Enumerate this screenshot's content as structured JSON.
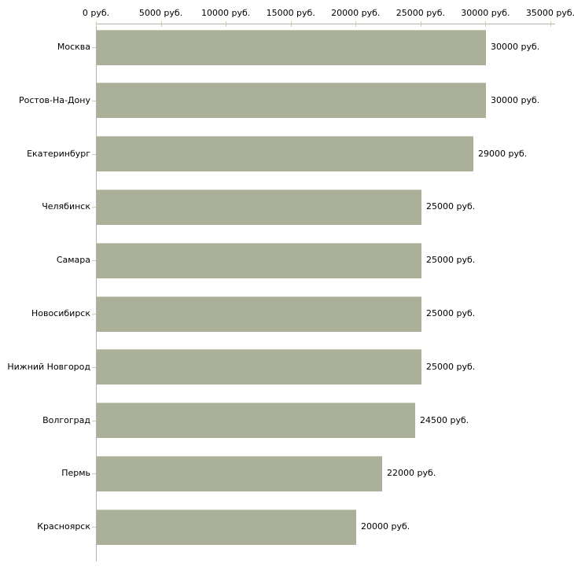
{
  "chart_data": {
    "type": "bar",
    "orientation": "horizontal",
    "title": "",
    "categories": [
      "Москва",
      "Ростов-На-Дону",
      "Екатеринбург",
      "Челябинск",
      "Самара",
      "Новосибирск",
      "Нижний Новгород",
      "Волгоград",
      "Пермь",
      "Красноярск"
    ],
    "values": [
      30000,
      30000,
      29000,
      25000,
      25000,
      25000,
      25000,
      24500,
      22000,
      20000
    ],
    "value_labels": [
      "30000 руб.",
      "30000 руб.",
      "29000 руб.",
      "25000 руб.",
      "25000 руб.",
      "25000 руб.",
      "25000 руб.",
      "24500 руб.",
      "22000 руб.",
      "20000 руб."
    ],
    "unit": "руб.",
    "x_axis": {
      "position": "top",
      "min": 0,
      "max": 35000,
      "ticks": [
        {
          "value": 0,
          "label": "0 руб."
        },
        {
          "value": 5000,
          "label": "5000 руб."
        },
        {
          "value": 10000,
          "label": "10000 руб."
        },
        {
          "value": 15000,
          "label": "15000 руб."
        },
        {
          "value": 20000,
          "label": "20000 руб."
        },
        {
          "value": 25000,
          "label": "25000 руб."
        },
        {
          "value": 30000,
          "label": "30000 руб."
        },
        {
          "value": 35000,
          "label": "35000 руб."
        }
      ]
    },
    "grid": false,
    "legend": null,
    "colors": {
      "background": "#ffffff",
      "bar_fill": "#abb198",
      "bar_highlight": "#c6cab4",
      "axis_line": "#b2b2b2",
      "axis_tick": "#cdcd9e",
      "category_tick": "#cfcfa8",
      "text": "#000000"
    }
  }
}
